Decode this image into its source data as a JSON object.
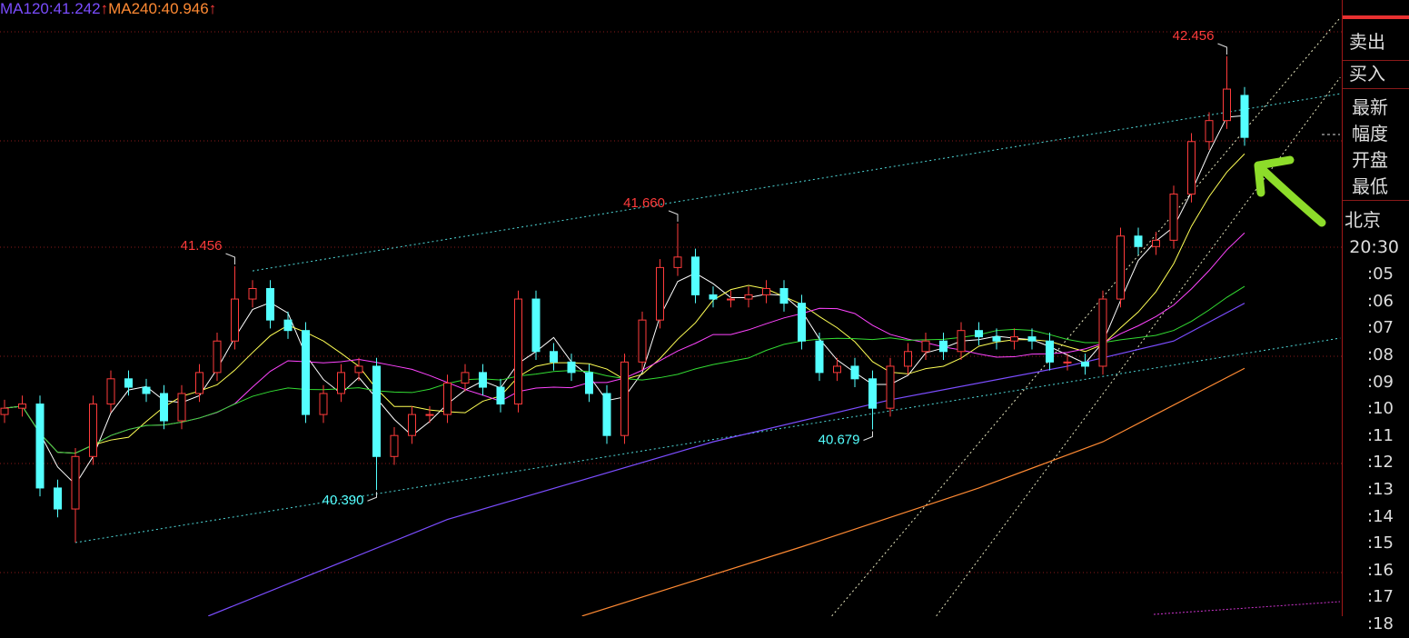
{
  "legend": {
    "ma120": "MA120:41.242",
    "ma240": "MA240:40.946",
    "arrow": "↑"
  },
  "panel": {
    "sell": "卖出",
    "buy": "买入",
    "fields": [
      "最新",
      "幅度",
      "开盘",
      "最低"
    ],
    "city": "北京",
    "times": [
      "20:30",
      ":05",
      ":06",
      ":07",
      ":08",
      ":09",
      ":10",
      ":11",
      ":12",
      ":13",
      ":14",
      ":15",
      ":16",
      ":17",
      ":18"
    ]
  },
  "colors": {
    "up": "#ff3b3b",
    "down": "#54ffff",
    "ma5": "#ffffff",
    "ma10": "#ffff55",
    "ma20": "#ff44ff",
    "ma30": "#33dd33",
    "ma120": "#7b4dff",
    "ma240": "#ff8a33",
    "grid": "#8a1a1a",
    "annotation_arrow": "#8ddc2a"
  },
  "chart_data": {
    "type": "candlestick",
    "title": "",
    "ylim": [
      39.79,
      42.72
    ],
    "grid": true,
    "close": [
      40.78,
      40.8,
      40.4,
      40.3,
      40.55,
      40.8,
      40.92,
      40.88,
      40.85,
      40.72,
      40.85,
      40.95,
      41.1,
      41.3,
      41.35,
      41.2,
      41.15,
      40.75,
      40.85,
      40.95,
      40.98,
      40.55,
      40.65,
      40.75,
      40.75,
      40.9,
      40.95,
      40.88,
      40.8,
      41.3,
      41.05,
      41.0,
      40.95,
      40.85,
      40.65,
      41.0,
      41.2,
      41.45,
      41.5,
      41.32,
      41.3,
      41.3,
      41.32,
      41.35,
      41.28,
      41.1,
      40.95,
      40.98,
      40.92,
      40.78,
      40.98,
      41.05,
      41.1,
      41.05,
      41.15,
      41.12,
      41.1,
      41.12,
      41.1,
      41.0,
      41.0,
      40.98,
      41.3,
      41.6,
      41.55,
      41.58,
      41.8,
      42.05,
      42.15,
      42.3,
      42.07
    ],
    "first_open": 40.75,
    "last_open": 42.27,
    "extremes": [
      {
        "index": 4,
        "type": "low",
        "value": 40.14,
        "label": ""
      },
      {
        "index": 13,
        "type": "high",
        "value": 41.456,
        "label": "41.456"
      },
      {
        "index": 21,
        "type": "low",
        "value": 40.39,
        "label": "40.390"
      },
      {
        "index": 38,
        "type": "high",
        "value": 41.66,
        "label": "41.660"
      },
      {
        "index": 49,
        "type": "low",
        "value": 40.679,
        "label": "40.679"
      },
      {
        "index": 69,
        "type": "high",
        "value": 42.456,
        "label": "42.456"
      }
    ],
    "long_ma": {
      "ma120": [
        [
          11.5,
          39.79
        ],
        [
          25,
          40.25
        ],
        [
          40,
          40.62
        ],
        [
          50,
          40.82
        ],
        [
          60,
          40.98
        ],
        [
          66,
          41.1
        ],
        [
          70,
          41.28
        ]
      ],
      "ma240": [
        [
          32.6,
          39.79
        ],
        [
          45,
          40.12
        ],
        [
          55,
          40.4
        ],
        [
          62,
          40.62
        ],
        [
          70,
          40.97
        ]
      ]
    },
    "trendlines": [
      {
        "style": "cyan",
        "points": [
          [
            4,
            40.14
          ],
          [
            75.4,
            41.114
          ]
        ]
      },
      {
        "style": "cyan",
        "points": [
          [
            14,
            41.434
          ],
          [
            75.4,
            42.278
          ]
        ]
      },
      {
        "style": "white",
        "points": [
          [
            46.7,
            39.79
          ],
          [
            75.4,
            42.64
          ]
        ]
      },
      {
        "style": "white",
        "points": [
          [
            52.6,
            39.79
          ],
          [
            75.4,
            42.356
          ]
        ]
      }
    ]
  }
}
